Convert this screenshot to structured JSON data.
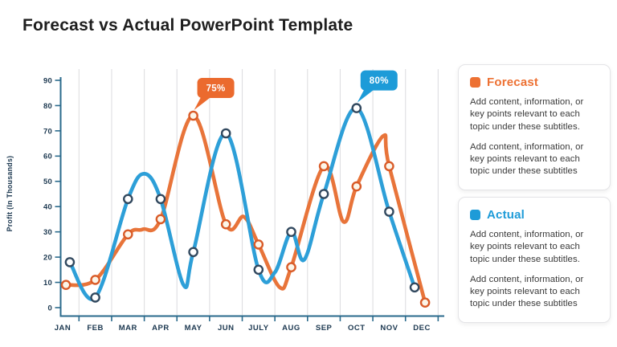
{
  "title": "Forecast vs Actual PowerPoint Template",
  "chart_data": {
    "type": "line",
    "title": "Forecast vs Actual",
    "categories": [
      "JAN",
      "FEB",
      "MAR",
      "APR",
      "MAY",
      "JUN",
      "JULY",
      "AUG",
      "SEP",
      "OCT",
      "NOV",
      "DEC"
    ],
    "xlabel": "",
    "ylabel": "Profit (In Thousands)",
    "ylim": [
      0,
      90
    ],
    "ytick_step": 10,
    "grid": "vertical-only",
    "legend_position": "right-cards",
    "axis_color": "#2a6a8c",
    "grid_color": "#dedee1",
    "tick_label_color": "#1c3850",
    "series": [
      {
        "name": "Forecast",
        "color": "#e8743a",
        "marker_stroke": "#d95b28",
        "marker_fill": "#fcf5e8",
        "values": [
          9,
          11,
          29,
          35,
          76,
          33,
          25,
          16,
          56,
          48,
          56,
          2
        ],
        "shape": [
          [
            0.1,
            9
          ],
          [
            1,
            11
          ],
          [
            2,
            29
          ],
          [
            2.45,
            31
          ],
          [
            3,
            35
          ],
          [
            4,
            76
          ],
          [
            5,
            33
          ],
          [
            5.55,
            36
          ],
          [
            6,
            25
          ],
          [
            6.65,
            8
          ],
          [
            7,
            16
          ],
          [
            8,
            56
          ],
          [
            8.6,
            34
          ],
          [
            9,
            48
          ],
          [
            9.82,
            68
          ],
          [
            10,
            56
          ],
          [
            11.1,
            2
          ]
        ]
      },
      {
        "name": "Actual",
        "color": "#2d9fd8",
        "marker_stroke": "#32495f",
        "marker_fill": "#ffffff",
        "values": [
          18,
          4,
          43,
          43,
          22,
          69,
          15,
          30,
          45,
          79,
          38,
          8
        ],
        "shape": [
          [
            0.22,
            18
          ],
          [
            1,
            4
          ],
          [
            2,
            43
          ],
          [
            2.5,
            53
          ],
          [
            3,
            43
          ],
          [
            3.7,
            9
          ],
          [
            4,
            22
          ],
          [
            5,
            69
          ],
          [
            6,
            15
          ],
          [
            6.5,
            14
          ],
          [
            7,
            30
          ],
          [
            7.4,
            19
          ],
          [
            8,
            45
          ],
          [
            9,
            79
          ],
          [
            10,
            38
          ],
          [
            10.78,
            8
          ]
        ]
      }
    ],
    "annotations": [
      {
        "text": "75%",
        "series": "Forecast",
        "category": "MAY",
        "value": 76,
        "color": "#eb6a2e"
      },
      {
        "text": "80%",
        "series": "Actual",
        "category": "OCT",
        "value": 79,
        "color": "#1d9bd8"
      }
    ]
  },
  "legend_cards": [
    {
      "title": "Forecast",
      "color": "#ed7133",
      "paragraphs": [
        "Add content, information, or key points relevant to each topic under these subtitles.",
        "Add content, information, or key points relevant to each topic under these subtitles"
      ]
    },
    {
      "title": "Actual",
      "color": "#1d9bd8",
      "paragraphs": [
        "Add content, information, or key points relevant to each topic under these subtitles.",
        "Add content, information, or key points relevant to each topic under these subtitles"
      ]
    }
  ]
}
